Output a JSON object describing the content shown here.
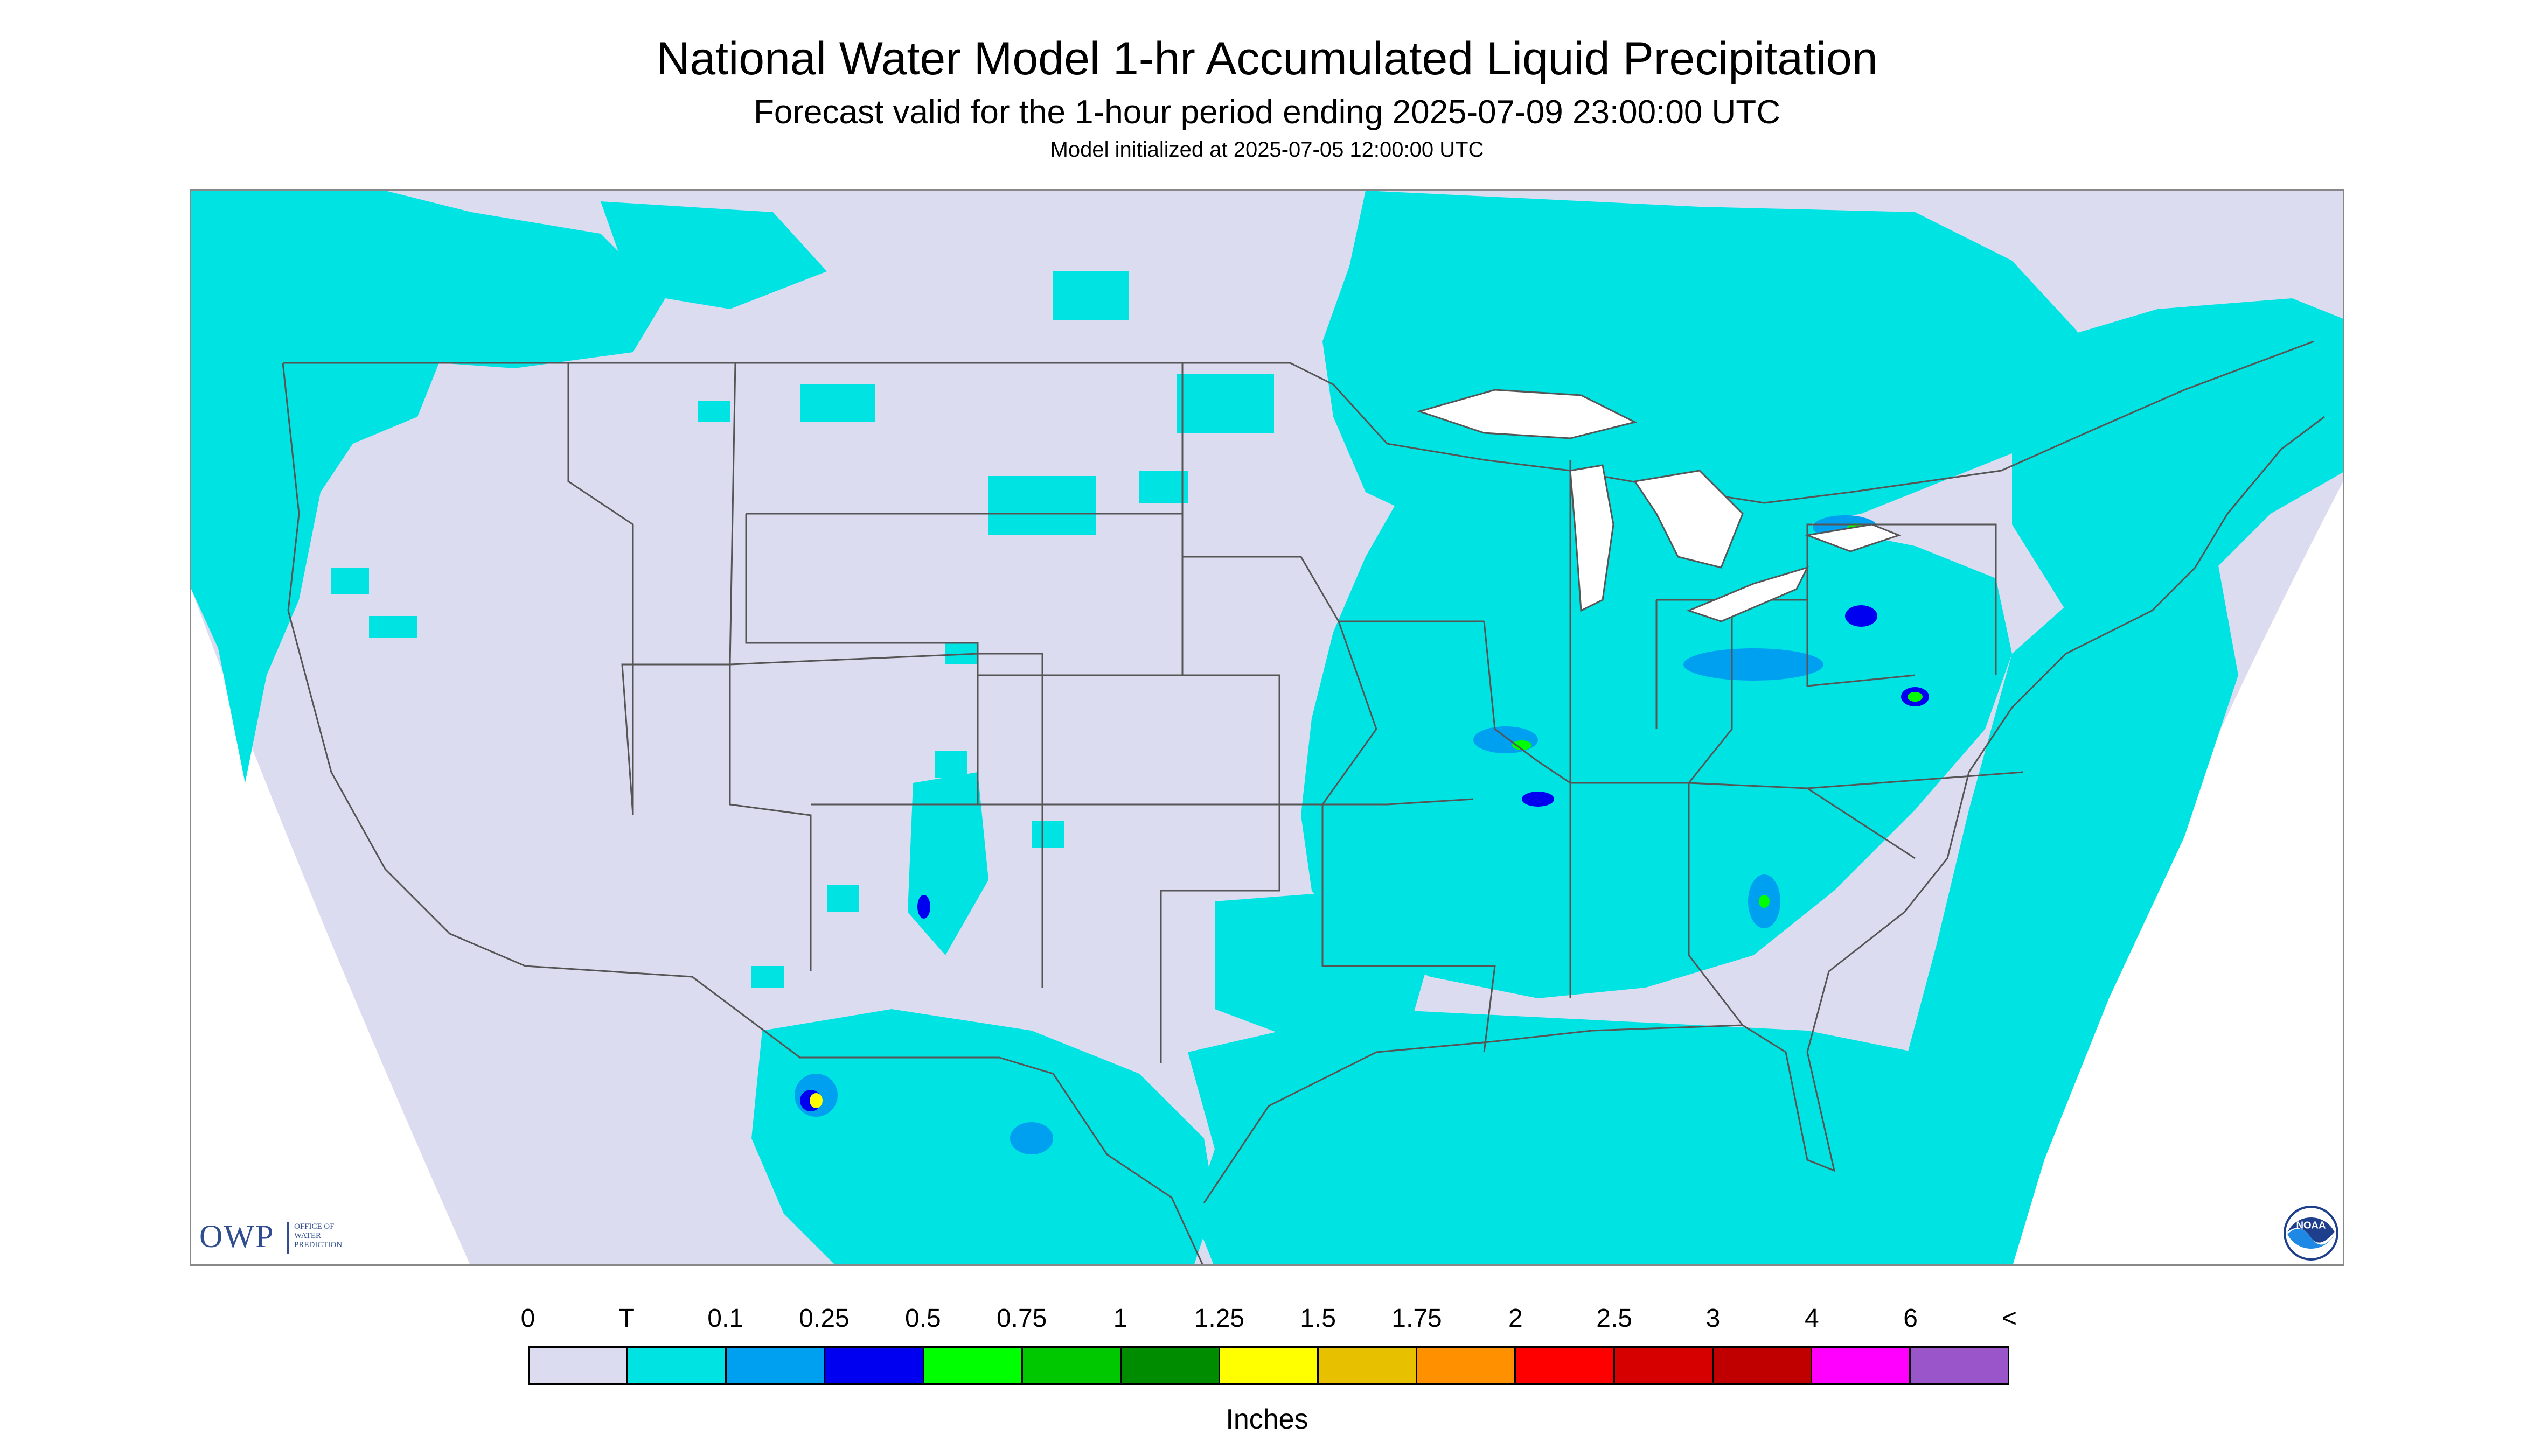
{
  "header": {
    "title": "National Water Model 1-hr Accumulated Liquid Precipitation",
    "subtitle": "Forecast valid for the 1-hour period ending 2025-07-09 23:00:00 UTC",
    "init": "Model initialized at 2025-07-05 12:00:00 UTC"
  },
  "map": {
    "land_color": "#dcdcf0",
    "outside_color": "#ffffff",
    "trace_color": "#00e3e3",
    "boundary_color": "#555555"
  },
  "logos": {
    "owp_letters": "OWP",
    "owp_lines": [
      "OFFICE OF",
      "WATER",
      "PREDICTION"
    ],
    "noaa_text": "NOAA"
  },
  "legend": {
    "labels": [
      "0",
      "T",
      "0.1",
      "0.25",
      "0.5",
      "0.75",
      "1",
      "1.25",
      "1.5",
      "1.75",
      "2",
      "2.5",
      "3",
      "4",
      "6",
      "<"
    ],
    "colors": [
      "#dcdcf0",
      "#00e3e3",
      "#00a0f0",
      "#0000f0",
      "#00ff00",
      "#00c800",
      "#008c00",
      "#ffff00",
      "#e7c000",
      "#ff9000",
      "#ff0000",
      "#d70000",
      "#c00000",
      "#ff00ff",
      "#9955c9"
    ],
    "units": "Inches"
  }
}
